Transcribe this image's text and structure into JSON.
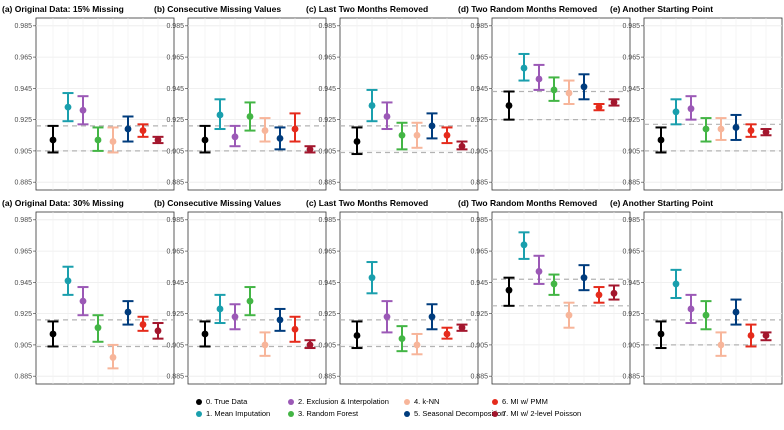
{
  "chart_data": {
    "type": "errorbar",
    "y_ticks": [
      "0.985",
      "0.965",
      "0.945",
      "0.925",
      "0.905",
      "0.885"
    ],
    "ylim": [
      0.88,
      0.99
    ],
    "methods": [
      {
        "label": "0. True Data",
        "color": "#000000"
      },
      {
        "label": "1. Mean Imputation",
        "color": "#1a9fad"
      },
      {
        "label": "2. Exclusion & Interpolation",
        "color": "#9b59b6"
      },
      {
        "label": "3. Random Forest",
        "color": "#43b545"
      },
      {
        "label": "4. k-NN",
        "color": "#f7b59a"
      },
      {
        "label": "5. Seasonal Decomposition",
        "color": "#003c7d"
      },
      {
        "label": "6. MI w/ PMM",
        "color": "#e52b1c"
      },
      {
        "label": "7. MI w/ 2-level Poisson",
        "color": "#a3162d"
      }
    ],
    "panels": [
      {
        "title": "(a) Original Data: 15% Missing",
        "ref_lines": [
          0.905,
          0.921
        ],
        "points": [
          [
            0.912,
            0.904,
            0.921
          ],
          [
            0.933,
            0.924,
            0.942
          ],
          [
            0.931,
            0.922,
            0.94
          ],
          [
            0.912,
            0.905,
            0.92
          ],
          [
            0.911,
            0.904,
            0.92
          ],
          [
            0.919,
            0.911,
            0.927
          ],
          [
            0.918,
            0.914,
            0.922
          ],
          [
            0.912,
            0.91,
            0.914
          ]
        ]
      },
      {
        "title": "(b) Consecutive Missing Values",
        "ref_lines": [
          0.905,
          0.921
        ],
        "points": [
          [
            0.912,
            0.904,
            0.921
          ],
          [
            0.928,
            0.919,
            0.938
          ],
          [
            0.914,
            0.908,
            0.921
          ],
          [
            0.927,
            0.918,
            0.936
          ],
          [
            0.918,
            0.911,
            0.926
          ],
          [
            0.913,
            0.906,
            0.92
          ],
          [
            0.919,
            0.911,
            0.929
          ],
          [
            0.906,
            0.904,
            0.908
          ]
        ]
      },
      {
        "title": "(c) Last Two Months Removed",
        "ref_lines": [
          0.904,
          0.921
        ],
        "points": [
          [
            0.911,
            0.903,
            0.92
          ],
          [
            0.934,
            0.924,
            0.944
          ],
          [
            0.927,
            0.919,
            0.936
          ],
          [
            0.915,
            0.906,
            0.923
          ],
          [
            0.915,
            0.907,
            0.923
          ],
          [
            0.921,
            0.913,
            0.929
          ],
          [
            0.915,
            0.91,
            0.92
          ],
          [
            0.908,
            0.906,
            0.911
          ]
        ]
      },
      {
        "title": "(d) Two Random Months Removed",
        "ref_lines": [
          0.925,
          0.943
        ],
        "points": [
          [
            0.934,
            0.925,
            0.943
          ],
          [
            0.958,
            0.95,
            0.967
          ],
          [
            0.951,
            0.944,
            0.96
          ],
          [
            0.944,
            0.937,
            0.952
          ],
          [
            0.942,
            0.935,
            0.95
          ],
          [
            0.946,
            0.938,
            0.954
          ],
          [
            0.933,
            0.931,
            0.935
          ],
          [
            0.936,
            0.934,
            0.938
          ]
        ]
      },
      {
        "title": "(e) Another Starting Point",
        "ref_lines": [
          0.905,
          0.922
        ],
        "points": [
          [
            0.912,
            0.904,
            0.92
          ],
          [
            0.93,
            0.922,
            0.938
          ],
          [
            0.932,
            0.925,
            0.94
          ],
          [
            0.919,
            0.911,
            0.926
          ],
          [
            0.919,
            0.912,
            0.926
          ],
          [
            0.92,
            0.912,
            0.928
          ],
          [
            0.918,
            0.914,
            0.922
          ],
          [
            0.917,
            0.915,
            0.919
          ]
        ]
      },
      {
        "title": "(a) Original Data: 30% Missing",
        "ref_lines": [
          0.904,
          0.921
        ],
        "points": [
          [
            0.912,
            0.904,
            0.92
          ],
          [
            0.946,
            0.937,
            0.955
          ],
          [
            0.933,
            0.924,
            0.942
          ],
          [
            0.916,
            0.907,
            0.924
          ],
          [
            0.897,
            0.89,
            0.905
          ],
          [
            0.926,
            0.918,
            0.933
          ],
          [
            0.918,
            0.914,
            0.923
          ],
          [
            0.914,
            0.909,
            0.919
          ]
        ]
      },
      {
        "title": "(b) Consecutive Missing Values",
        "ref_lines": [
          0.904,
          0.921
        ],
        "points": [
          [
            0.912,
            0.904,
            0.92
          ],
          [
            0.928,
            0.919,
            0.937
          ],
          [
            0.923,
            0.915,
            0.931
          ],
          [
            0.933,
            0.924,
            0.942
          ],
          [
            0.905,
            0.898,
            0.913
          ],
          [
            0.921,
            0.914,
            0.928
          ],
          [
            0.915,
            0.907,
            0.923
          ],
          [
            0.905,
            0.903,
            0.908
          ]
        ]
      },
      {
        "title": "(c) Last Two Months Removed",
        "ref_lines": [
          0.904,
          0.921
        ],
        "points": [
          [
            0.911,
            0.903,
            0.92
          ],
          [
            0.948,
            0.938,
            0.958
          ],
          [
            0.923,
            0.913,
            0.933
          ],
          [
            0.909,
            0.901,
            0.917
          ],
          [
            0.905,
            0.899,
            0.912
          ],
          [
            0.923,
            0.915,
            0.931
          ],
          [
            0.912,
            0.909,
            0.916
          ],
          [
            0.916,
            0.914,
            0.918
          ]
        ]
      },
      {
        "title": "(d) Two Random Months Removed",
        "ref_lines": [
          0.93,
          0.947
        ],
        "points": [
          [
            0.94,
            0.93,
            0.948
          ],
          [
            0.969,
            0.96,
            0.977
          ],
          [
            0.952,
            0.944,
            0.962
          ],
          [
            0.944,
            0.937,
            0.95
          ],
          [
            0.924,
            0.916,
            0.932
          ],
          [
            0.948,
            0.94,
            0.956
          ],
          [
            0.937,
            0.932,
            0.942
          ],
          [
            0.938,
            0.934,
            0.943
          ]
        ]
      },
      {
        "title": "(e) Another Starting Point",
        "ref_lines": [
          0.905,
          0.921
        ],
        "points": [
          [
            0.912,
            0.903,
            0.92
          ],
          [
            0.944,
            0.935,
            0.953
          ],
          [
            0.928,
            0.919,
            0.937
          ],
          [
            0.924,
            0.915,
            0.933
          ],
          [
            0.905,
            0.898,
            0.913
          ],
          [
            0.926,
            0.918,
            0.934
          ],
          [
            0.911,
            0.904,
            0.918
          ],
          [
            0.911,
            0.908,
            0.913
          ]
        ]
      }
    ]
  }
}
